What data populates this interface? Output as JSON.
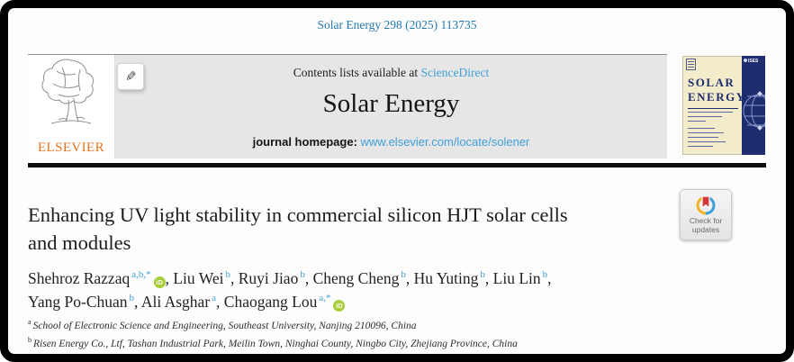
{
  "colors": {
    "link_blue": "#3f9fd8",
    "citation_blue": "#2479ad",
    "elsevier_orange": "#e8731f",
    "orcid_green": "#a6ce39",
    "cover_navy": "#1d2d6e",
    "cover_cream": "#f3ecca"
  },
  "page": {
    "citation": "Solar Energy 298 (2025) 113735"
  },
  "banner": {
    "contents_text": "Contents lists available at ",
    "sciencedirect_link": "ScienceDirect",
    "journal_title": "Solar Energy",
    "homepage_label": "journal homepage: ",
    "homepage_url": "www.elsevier.com/locate/solener",
    "elsevier_wordmark": "ELSEVIER"
  },
  "cover": {
    "title_word1": "SOLAR",
    "title_word2": "ENERGY",
    "ises_label": "ISES"
  },
  "crossmark": {
    "line1": "Check for",
    "line2": "updates"
  },
  "article": {
    "title_lines": [
      "Enhancing UV light stability in commercial silicon HJT solar cells",
      "and modules"
    ],
    "authors": [
      {
        "name": "Shehroz Razzaq",
        "sup": "a,b,*",
        "orcid": true,
        "break_after": false
      },
      {
        "name": "Liu Wei",
        "sup": "b",
        "orcid": false,
        "break_after": false
      },
      {
        "name": "Ruyi Jiao",
        "sup": "b",
        "orcid": false,
        "break_after": false
      },
      {
        "name": "Cheng Cheng",
        "sup": "b",
        "orcid": false,
        "break_after": false
      },
      {
        "name": "Hu Yuting",
        "sup": "b",
        "orcid": false,
        "break_after": false
      },
      {
        "name": "Liu Lin",
        "sup": "b",
        "orcid": false,
        "break_after": true
      },
      {
        "name": "Yang Po-Chuan",
        "sup": "b",
        "orcid": false,
        "break_after": false
      },
      {
        "name": "Ali Asghar",
        "sup": "a",
        "orcid": false,
        "break_after": false
      },
      {
        "name": "Chaogang Lou",
        "sup": "a,*",
        "orcid": true,
        "break_after": false
      }
    ],
    "affiliations": [
      {
        "marker": "a",
        "text": "School of Electronic Science and Engineering, Southeast University, Nanjing 210096, China"
      },
      {
        "marker": "b",
        "text": "Risen Energy Co., Ltf, Tashan Industrial Park, Meilin Town, Ninghai County, Ningbo City, Zhejiang Province, China"
      }
    ]
  }
}
